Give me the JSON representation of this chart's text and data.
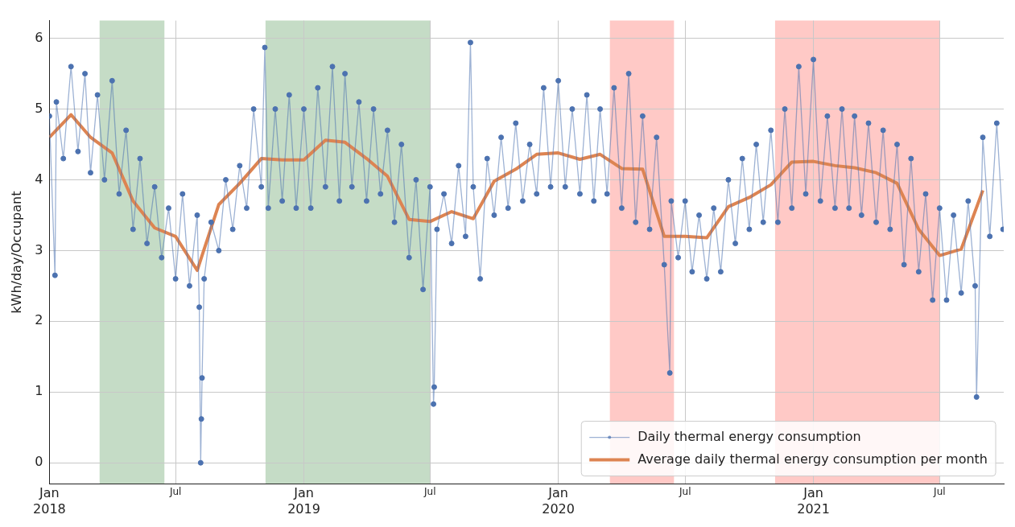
{
  "chart_data": {
    "type": "line",
    "ylabel": "kWh/day/Occupant",
    "xlim": [
      "2018-01-01",
      "2021-10-01"
    ],
    "ylim": [
      -0.3,
      6.25
    ],
    "xticks": [
      {
        "value": "2018-01-01",
        "label": "Jan\n2018"
      },
      {
        "value": "2018-07-01",
        "label": "Jul"
      },
      {
        "value": "2019-01-01",
        "label": "Jan\n2019"
      },
      {
        "value": "2019-07-01",
        "label": "Jul"
      },
      {
        "value": "2020-01-01",
        "label": "Jan\n2020"
      },
      {
        "value": "2020-07-01",
        "label": "Jul"
      },
      {
        "value": "2021-01-01",
        "label": "Jan\n2021"
      },
      {
        "value": "2021-07-01",
        "label": "Jul"
      }
    ],
    "yticks": [
      0,
      1,
      2,
      3,
      4,
      5,
      6
    ],
    "grid": true,
    "legend": "bottom right",
    "bands": [
      {
        "axis": "x",
        "from": "2018-03-14",
        "to": "2018-06-15",
        "color": "#c5dcc6"
      },
      {
        "axis": "x",
        "from": "2018-11-07",
        "to": "2019-07-01",
        "color": "#c5dcc6"
      },
      {
        "axis": "x",
        "from": "2020-03-15",
        "to": "2020-06-15",
        "color": "#ffc9c6"
      },
      {
        "axis": "x",
        "from": "2020-11-07",
        "to": "2021-07-01",
        "color": "#ffc9c6"
      }
    ],
    "series": [
      {
        "name": "Daily thermal energy consumption",
        "color": "#4c72b0",
        "marker": "circle",
        "x": [
          "2018-01-01",
          "2018-01-09",
          "2018-01-11",
          "2018-01-21",
          "2018-02-01",
          "2018-02-11",
          "2018-02-21",
          "2018-03-01",
          "2018-03-11",
          "2018-03-21",
          "2018-04-01",
          "2018-04-11",
          "2018-04-21",
          "2018-05-01",
          "2018-05-11",
          "2018-05-21",
          "2018-06-01",
          "2018-06-11",
          "2018-06-21",
          "2018-07-01",
          "2018-07-11",
          "2018-07-21",
          "2018-08-01",
          "2018-08-04",
          "2018-08-06",
          "2018-08-07",
          "2018-08-08",
          "2018-08-11",
          "2018-08-21",
          "2018-09-01",
          "2018-09-11",
          "2018-09-21",
          "2018-10-01",
          "2018-10-11",
          "2018-10-21",
          "2018-11-01",
          "2018-11-06",
          "2018-11-11",
          "2018-11-21",
          "2018-12-01",
          "2018-12-11",
          "2018-12-21",
          "2019-01-01",
          "2019-01-11",
          "2019-01-21",
          "2019-02-01",
          "2019-02-11",
          "2019-02-21",
          "2019-03-01",
          "2019-03-11",
          "2019-03-21",
          "2019-04-01",
          "2019-04-11",
          "2019-04-21",
          "2019-05-01",
          "2019-05-11",
          "2019-05-21",
          "2019-06-01",
          "2019-06-11",
          "2019-06-21",
          "2019-07-01",
          "2019-07-06",
          "2019-07-07",
          "2019-07-11",
          "2019-07-21",
          "2019-08-01",
          "2019-08-11",
          "2019-08-21",
          "2019-08-28",
          "2019-09-01",
          "2019-09-11",
          "2019-09-21",
          "2019-10-01",
          "2019-10-11",
          "2019-10-21",
          "2019-11-01",
          "2019-11-11",
          "2019-11-21",
          "2019-12-01",
          "2019-12-11",
          "2019-12-21",
          "2020-01-01",
          "2020-01-11",
          "2020-01-21",
          "2020-02-01",
          "2020-02-11",
          "2020-02-21",
          "2020-03-01",
          "2020-03-11",
          "2020-03-21",
          "2020-04-01",
          "2020-04-11",
          "2020-04-21",
          "2020-05-01",
          "2020-05-11",
          "2020-05-21",
          "2020-06-01",
          "2020-06-09",
          "2020-06-11",
          "2020-06-21",
          "2020-07-01",
          "2020-07-11",
          "2020-07-21",
          "2020-08-01",
          "2020-08-11",
          "2020-08-21",
          "2020-09-01",
          "2020-09-11",
          "2020-09-21",
          "2020-10-01",
          "2020-10-11",
          "2020-10-21",
          "2020-11-01",
          "2020-11-11",
          "2020-11-21",
          "2020-12-01",
          "2020-12-11",
          "2020-12-21",
          "2021-01-01",
          "2021-01-11",
          "2021-01-21",
          "2021-02-01",
          "2021-02-11",
          "2021-02-21",
          "2021-03-01",
          "2021-03-11",
          "2021-03-21",
          "2021-04-01",
          "2021-04-11",
          "2021-04-21",
          "2021-05-01",
          "2021-05-11",
          "2021-05-21",
          "2021-06-01",
          "2021-06-11",
          "2021-06-21",
          "2021-07-01",
          "2021-07-11",
          "2021-07-21",
          "2021-08-01",
          "2021-08-11",
          "2021-08-21",
          "2021-08-23",
          "2021-09-01",
          "2021-09-11",
          "2021-09-21",
          "2021-09-30"
        ],
        "values": [
          4.9,
          2.65,
          5.1,
          4.3,
          5.6,
          4.4,
          5.5,
          4.1,
          5.2,
          4.0,
          5.4,
          3.8,
          4.7,
          3.3,
          4.3,
          3.1,
          3.9,
          2.9,
          3.6,
          2.6,
          3.8,
          2.5,
          3.5,
          2.2,
          0,
          0.62,
          1.2,
          2.6,
          3.4,
          3.0,
          4.0,
          3.3,
          4.2,
          3.6,
          5.0,
          3.9,
          5.87,
          3.6,
          5.0,
          3.7,
          5.2,
          3.6,
          5.0,
          3.6,
          5.3,
          3.9,
          5.6,
          3.7,
          5.5,
          3.9,
          5.1,
          3.7,
          5.0,
          3.8,
          4.7,
          3.4,
          4.5,
          2.9,
          4.0,
          2.45,
          3.9,
          0.83,
          1.07,
          3.3,
          3.8,
          3.1,
          4.2,
          3.2,
          5.94,
          3.9,
          2.6,
          4.3,
          3.5,
          4.6,
          3.6,
          4.8,
          3.7,
          4.5,
          3.8,
          5.3,
          3.9,
          5.4,
          3.9,
          5.0,
          3.8,
          5.2,
          3.7,
          5.0,
          3.8,
          5.3,
          3.6,
          5.5,
          3.4,
          4.9,
          3.3,
          4.6,
          2.8,
          1.27,
          3.7,
          2.9,
          3.7,
          2.7,
          3.5,
          2.6,
          3.6,
          2.7,
          4.0,
          3.1,
          4.3,
          3.3,
          4.5,
          3.4,
          4.7,
          3.4,
          5.0,
          3.6,
          5.6,
          3.8,
          5.7,
          3.7,
          4.9,
          3.6,
          5.0,
          3.6,
          4.9,
          3.5,
          4.8,
          3.4,
          4.7,
          3.3,
          4.5,
          2.8,
          4.3,
          2.7,
          3.8,
          2.3,
          3.6,
          2.3,
          3.5,
          2.4,
          3.7,
          2.5,
          0.93,
          4.6,
          3.2,
          4.8,
          3.3
        ]
      },
      {
        "name": "Average daily thermal energy consumption per month",
        "color": "#dd8452",
        "marker": "none",
        "x": [
          "2018-01",
          "2018-02",
          "2018-03",
          "2018-04",
          "2018-05",
          "2018-06",
          "2018-07",
          "2018-08",
          "2018-09",
          "2018-10",
          "2018-11",
          "2018-12",
          "2019-01",
          "2019-02",
          "2019-03",
          "2019-04",
          "2019-05",
          "2019-06",
          "2019-07",
          "2019-08",
          "2019-09",
          "2019-10",
          "2019-11",
          "2019-12",
          "2020-01",
          "2020-02",
          "2020-03",
          "2020-04",
          "2020-05",
          "2020-06",
          "2020-07",
          "2020-08",
          "2020-09",
          "2020-10",
          "2020-11",
          "2020-12",
          "2021-01",
          "2021-02",
          "2021-03",
          "2021-04",
          "2021-05",
          "2021-06",
          "2021-07",
          "2021-08",
          "2021-09"
        ],
        "values": [
          4.6,
          4.92,
          4.6,
          4.38,
          3.7,
          3.32,
          3.2,
          2.72,
          3.65,
          3.95,
          4.3,
          4.28,
          4.28,
          4.56,
          4.53,
          4.3,
          4.05,
          3.44,
          3.41,
          3.55,
          3.45,
          3.98,
          4.15,
          4.36,
          4.38,
          4.29,
          4.36,
          4.16,
          4.15,
          3.2,
          3.2,
          3.18,
          3.62,
          3.75,
          3.93,
          4.25,
          4.26,
          4.2,
          4.17,
          4.1,
          3.95,
          3.3,
          2.93,
          3.02,
          3.85
        ]
      }
    ]
  }
}
